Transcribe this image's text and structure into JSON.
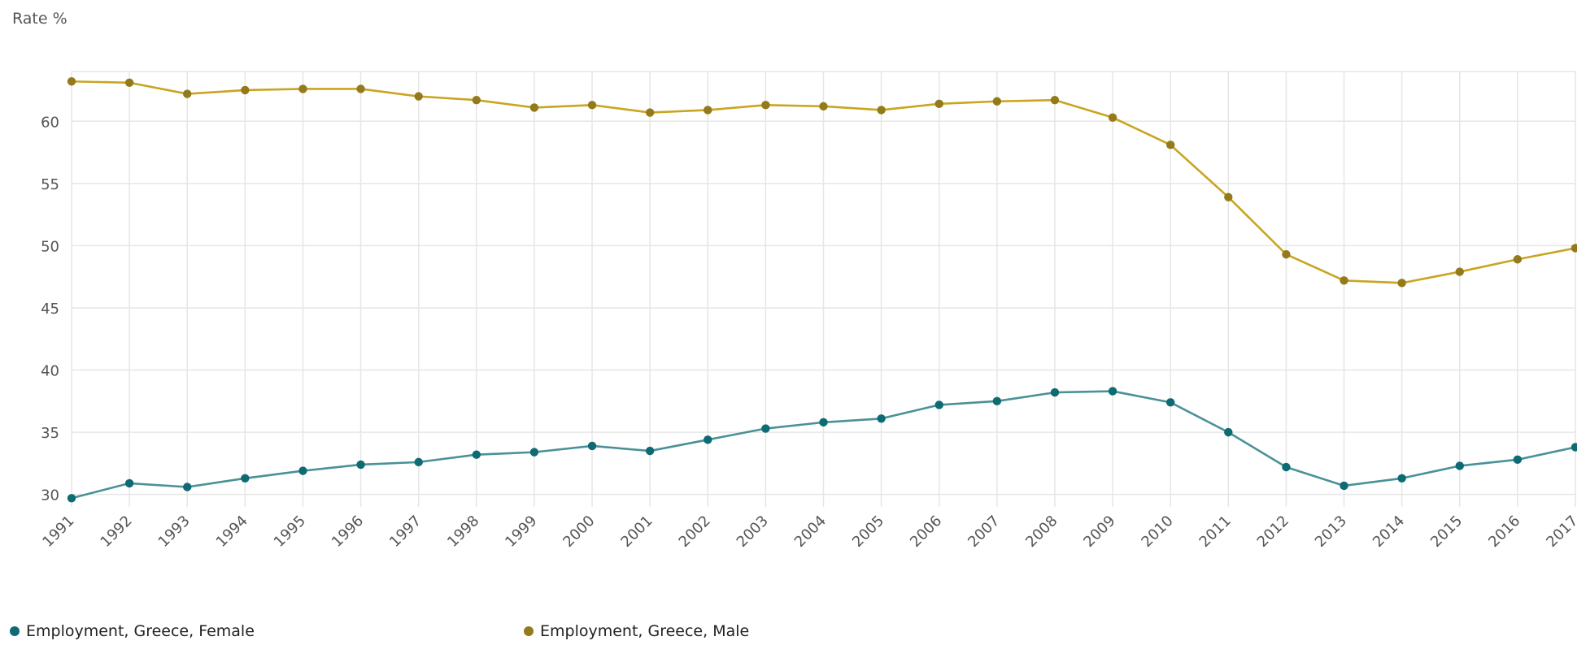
{
  "chart_data": {
    "type": "line",
    "ylabel": "Rate %",
    "ylim": [
      29,
      64
    ],
    "yticks": [
      30,
      35,
      40,
      45,
      50,
      55,
      60
    ],
    "grid": true,
    "legend_position": "bottom-left",
    "x": [
      "1991",
      "1992",
      "1993",
      "1994",
      "1995",
      "1996",
      "1997",
      "1998",
      "1999",
      "2000",
      "2001",
      "2002",
      "2003",
      "2004",
      "2005",
      "2006",
      "2007",
      "2008",
      "2009",
      "2010",
      "2011",
      "2012",
      "2013",
      "2014",
      "2015",
      "2016",
      "2017"
    ],
    "series": [
      {
        "name": "Employment, Greece, Female",
        "color": "#0e6b73",
        "line_color": "#4a9198",
        "values": [
          29.7,
          30.9,
          30.6,
          31.3,
          31.9,
          32.4,
          32.6,
          33.2,
          33.4,
          33.9,
          33.5,
          34.4,
          35.3,
          35.8,
          36.1,
          37.2,
          37.5,
          38.2,
          38.3,
          37.4,
          35.0,
          32.2,
          30.7,
          31.3,
          32.3,
          32.8,
          33.8
        ]
      },
      {
        "name": "Employment, Greece, Male",
        "color": "#947a1a",
        "line_color": "#c9a521",
        "values": [
          63.2,
          63.1,
          62.2,
          62.5,
          62.6,
          62.6,
          62.0,
          61.7,
          61.1,
          61.3,
          60.7,
          60.9,
          61.3,
          61.2,
          60.9,
          61.4,
          61.6,
          61.7,
          60.3,
          58.1,
          53.9,
          49.3,
          47.2,
          47.0,
          47.9,
          48.9,
          49.8
        ]
      }
    ]
  }
}
